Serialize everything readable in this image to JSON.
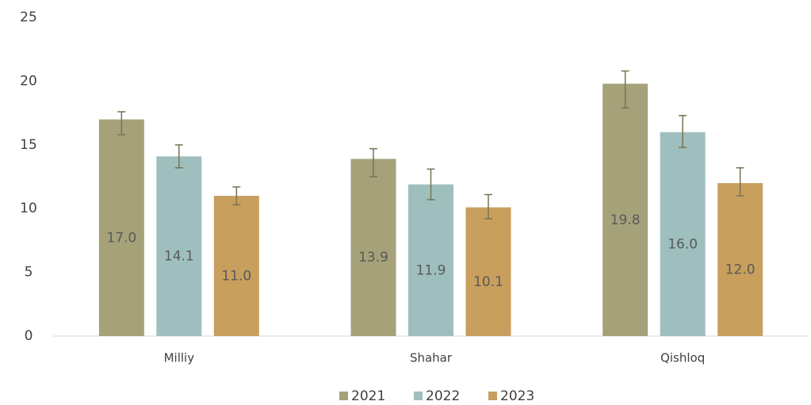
{
  "chart_data": {
    "type": "bar",
    "categories": [
      "Milliy",
      "Shahar",
      "Qishloq"
    ],
    "series": [
      {
        "name": "2021",
        "color": "#a5a27a",
        "values": [
          17.0,
          13.9,
          19.8
        ],
        "value_labels": [
          "17.0",
          "13.9",
          "19.8"
        ],
        "error_minus": [
          1.2,
          1.4,
          1.9
        ],
        "error_plus": [
          0.6,
          0.8,
          1.0
        ]
      },
      {
        "name": "2022",
        "color": "#9fbfbf",
        "values": [
          14.1,
          11.9,
          16.0
        ],
        "value_labels": [
          "14.1",
          "11.9",
          "16.0"
        ],
        "error_minus": [
          0.9,
          1.2,
          1.2
        ],
        "error_plus": [
          0.9,
          1.2,
          1.3
        ]
      },
      {
        "name": "2023",
        "color": "#c89f5d",
        "values": [
          11.0,
          10.1,
          12.0
        ],
        "value_labels": [
          "11.0",
          "10.1",
          "12.0"
        ],
        "error_minus": [
          0.7,
          0.9,
          1.0
        ],
        "error_plus": [
          0.7,
          1.0,
          1.2
        ]
      }
    ],
    "error_color": "#7a7350",
    "ylim": [
      0,
      25
    ],
    "yticks": [
      0,
      5,
      10,
      15,
      20,
      25
    ],
    "grid": false,
    "legend": "bottom"
  }
}
